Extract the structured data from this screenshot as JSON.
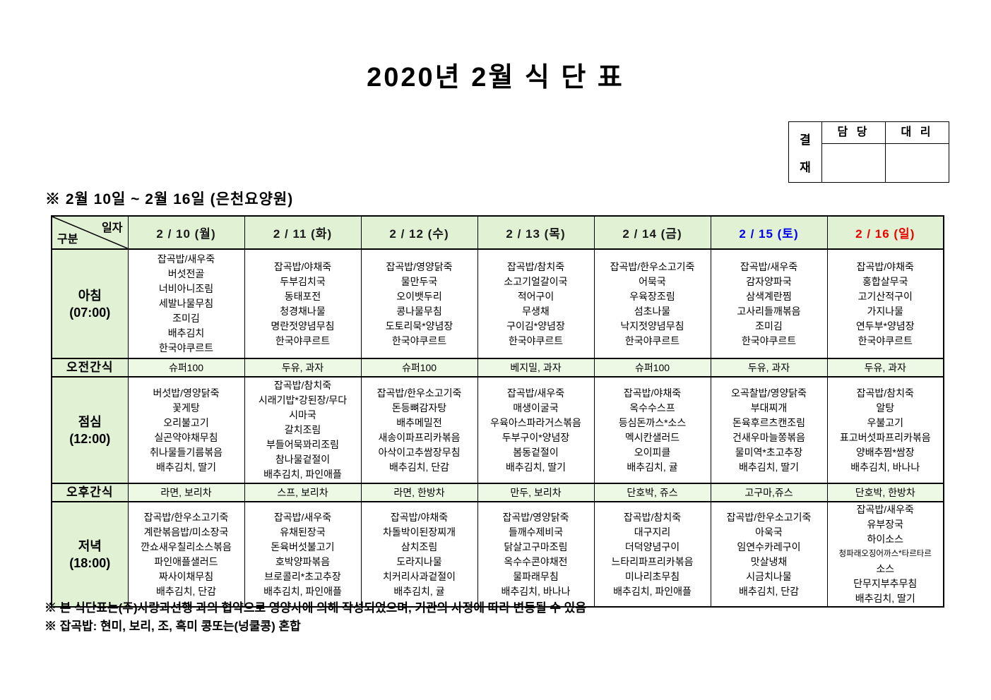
{
  "title": "2020년 2월 식 단 표",
  "approval": {
    "stamp_char1": "결",
    "stamp_char2": "재",
    "col1": "담 당",
    "col2": "대 리"
  },
  "subtitle": "※ 2월 10일 ~ 2월 16일 (은천요양원)",
  "colors": {
    "header_green": "#e0f1d4",
    "snack_green": "#edf8e5",
    "weekday_black": "#1a1a1a",
    "saturday_blue": "#0000ee",
    "sunday_red": "#ee0000",
    "border": "#000000"
  },
  "table": {
    "corner": {
      "top": "일자",
      "bottom": "구분"
    },
    "days": [
      {
        "label": "2 / 10 (월)",
        "color": "#1a1a1a"
      },
      {
        "label": "2 / 11 (화)",
        "color": "#1a1a1a"
      },
      {
        "label": "2 / 12 (수)",
        "color": "#1a1a1a"
      },
      {
        "label": "2 / 13 (목)",
        "color": "#1a1a1a"
      },
      {
        "label": "2 / 14 (금)",
        "color": "#1a1a1a"
      },
      {
        "label": "2 / 15 (토)",
        "color": "#0000ee"
      },
      {
        "label": "2 / 16 (일)",
        "color": "#ee0000"
      }
    ],
    "rows": [
      {
        "type": "meal",
        "label": "아침",
        "time": "(07:00)",
        "cells": [
          [
            "잡곡밥/새우죽",
            "버섯전골",
            "너비아니조림",
            "세발나물무침",
            "조미김",
            "배추김치",
            "한국야쿠르트"
          ],
          [
            "잡곡밥/야채죽",
            "두부김치국",
            "동태포전",
            "청경채나물",
            "명란젓양념무침",
            "한국야쿠르트"
          ],
          [
            "잡곡밥/영양닭죽",
            "물만두국",
            "오이뱃두리",
            "콩나물무침",
            "도토리묵*양념장",
            "한국야쿠르트"
          ],
          [
            "잡곡밥/참치죽",
            "소고기얼갈이국",
            "적어구이",
            "무생채",
            "구이김*양념장",
            "한국야쿠르트"
          ],
          [
            "잡곡밥/한우소고기죽",
            "어묵국",
            "우육장조림",
            "섬초나물",
            "낙지젓양념무침",
            "한국야쿠르트"
          ],
          [
            "잡곡밥/새우죽",
            "감자양파국",
            "삼색계란찜",
            "고사리들깨볶음",
            "조미김",
            "한국야쿠르트"
          ],
          [
            "잡곡밥/야채죽",
            "홍합살무국",
            "고기산적구이",
            "가지나물",
            "연두부*양념장",
            "한국야쿠르트"
          ]
        ]
      },
      {
        "type": "snack",
        "label": "오전간식",
        "cells": [
          "슈퍼100",
          "두유, 과자",
          "슈퍼100",
          "베지밀, 과자",
          "슈퍼100",
          "두유, 과자",
          "두유, 과자"
        ]
      },
      {
        "type": "meal",
        "label": "점심",
        "time": "(12:00)",
        "cells": [
          [
            "버섯밥/영양닭죽",
            "꽃게탕",
            "오리불고기",
            "실곤약야채무침",
            "취나물들기름볶음",
            "배추김치, 딸기"
          ],
          [
            "잡곡밥/참치죽",
            "시래기밥*강된장/무다",
            "시마국",
            "갈치조림",
            "부들어묵꽈리조림",
            "참나물겉절이",
            "배추김치, 파인애플"
          ],
          [
            "잡곡밥/한우소고기죽",
            "돈등뼈감자탕",
            "배추메밀전",
            "새송이파프리카볶음",
            "아삭이고추쌈장무침",
            "배추김치, 단감"
          ],
          [
            "잡곡밥/새우죽",
            "매생이굴국",
            "우육아스파라거스볶음",
            "두부구이*양념장",
            "봄동겉절이",
            "배추김치, 딸기"
          ],
          [
            "잡곡밥/야채죽",
            "옥수수스프",
            "등심돈까스*소스",
            "멕시칸샐러드",
            "오이피클",
            "배추김치, 귤"
          ],
          [
            "오곡찰밥/영양닭죽",
            "부대찌개",
            "돈육후르츠캔조림",
            "건새우마늘쫑볶음",
            "물미역*초고추장",
            "배추김치, 딸기"
          ],
          [
            "잡곡밥/참치죽",
            "알탕",
            "우불고기",
            "표고버섯파프리카볶음",
            "양배추찜*쌈장",
            "배추김치, 바나나"
          ]
        ]
      },
      {
        "type": "snack",
        "label": "오후간식",
        "cells": [
          "라면, 보리차",
          "스프, 보리차",
          "라면, 한방차",
          "만두, 보리차",
          "단호박, 쥬스",
          "고구마,쥬스",
          "단호박, 한방차"
        ]
      },
      {
        "type": "meal",
        "label": "저녁",
        "time": "(18:00)",
        "cells": [
          [
            "잡곡밥/한우소고기죽",
            "계란볶음밥/미소장국",
            "깐쇼새우칠리소스볶음",
            "파인애플샐러드",
            "짜사이채무침",
            "배추김치, 단감"
          ],
          [
            "잡곡밥/새우죽",
            "유채된장국",
            "돈육버섯불고기",
            "호박양파볶음",
            "브로콜리*초고추장",
            "배추김치, 파인애플"
          ],
          [
            "잡곡밥/야채죽",
            "차돌박이된장찌개",
            "삼치조림",
            "도라지나물",
            "치커리사과겉절이",
            "배추김치, 귤"
          ],
          [
            "잡곡밥/영양닭죽",
            "들깨수제비국",
            "닭살고구마조림",
            "옥수수콘야채전",
            "물파래무침",
            "배추김치, 바나나"
          ],
          [
            "잡곡밥/참치죽",
            "대구지리",
            "더덕양념구이",
            "느타리파프리카볶음",
            "미나리초무침",
            "배추김치, 파인애플"
          ],
          [
            "잡곡밥/한우소고기죽",
            "아욱국",
            "임연수카레구이",
            "맛살냉채",
            "시금치나물",
            "배추김치, 단감"
          ],
          [
            "잡곡밥/새우죽",
            "유부장국",
            "하이소스",
            "청파래오징어까스*타르타르",
            "소스",
            "단무지부추무침",
            "배추김치, 딸기"
          ]
        ]
      }
    ]
  },
  "notes": [
    "※ 본 식단표는(주)사랑과선행 과의 협약으로 영양사에 의해 작성되었으며, 기관의 사정에 따라 변동될 수 있음",
    "※ 잡곡밥: 현미, 보리, 조, 흑미 콩또는(넝쿨콩) 혼합"
  ]
}
